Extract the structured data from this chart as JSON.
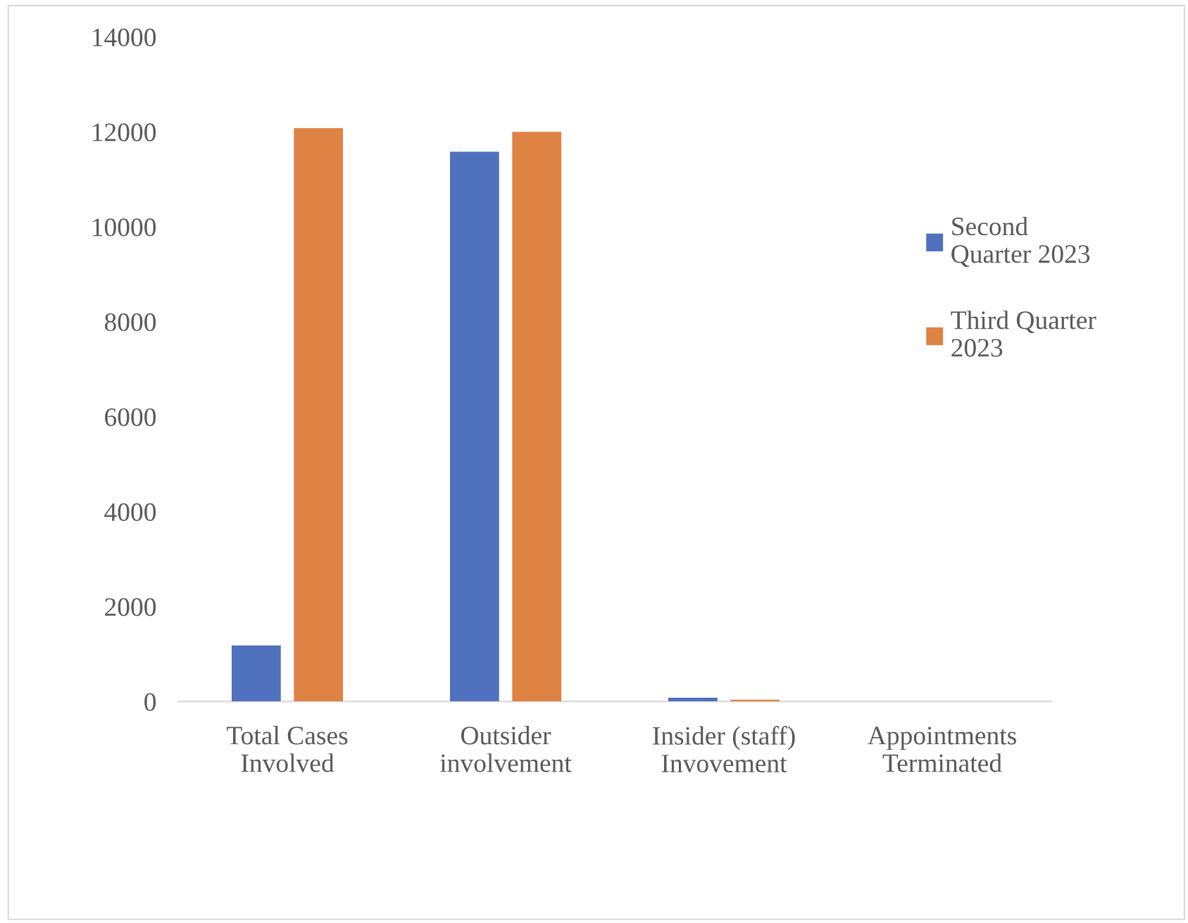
{
  "chart_data": {
    "type": "bar",
    "categories": [
      "Total Cases\nInvolved",
      "Outsider\ninvolvement",
      "Insider (staff)\nInvovement",
      "Appointments\nTerminated"
    ],
    "series": [
      {
        "name": "Second\nQuarter 2023",
        "color": "#4f71be",
        "values": [
          1180,
          11580,
          80,
          0
        ]
      },
      {
        "name": "Third Quarter\n2023",
        "color": "#de8344",
        "values": [
          12080,
          12000,
          40,
          0
        ]
      }
    ],
    "ylim": [
      0,
      14000
    ],
    "yticks": [
      0,
      2000,
      4000,
      6000,
      8000,
      10000,
      12000,
      14000
    ],
    "grid": false,
    "legend": "right"
  }
}
